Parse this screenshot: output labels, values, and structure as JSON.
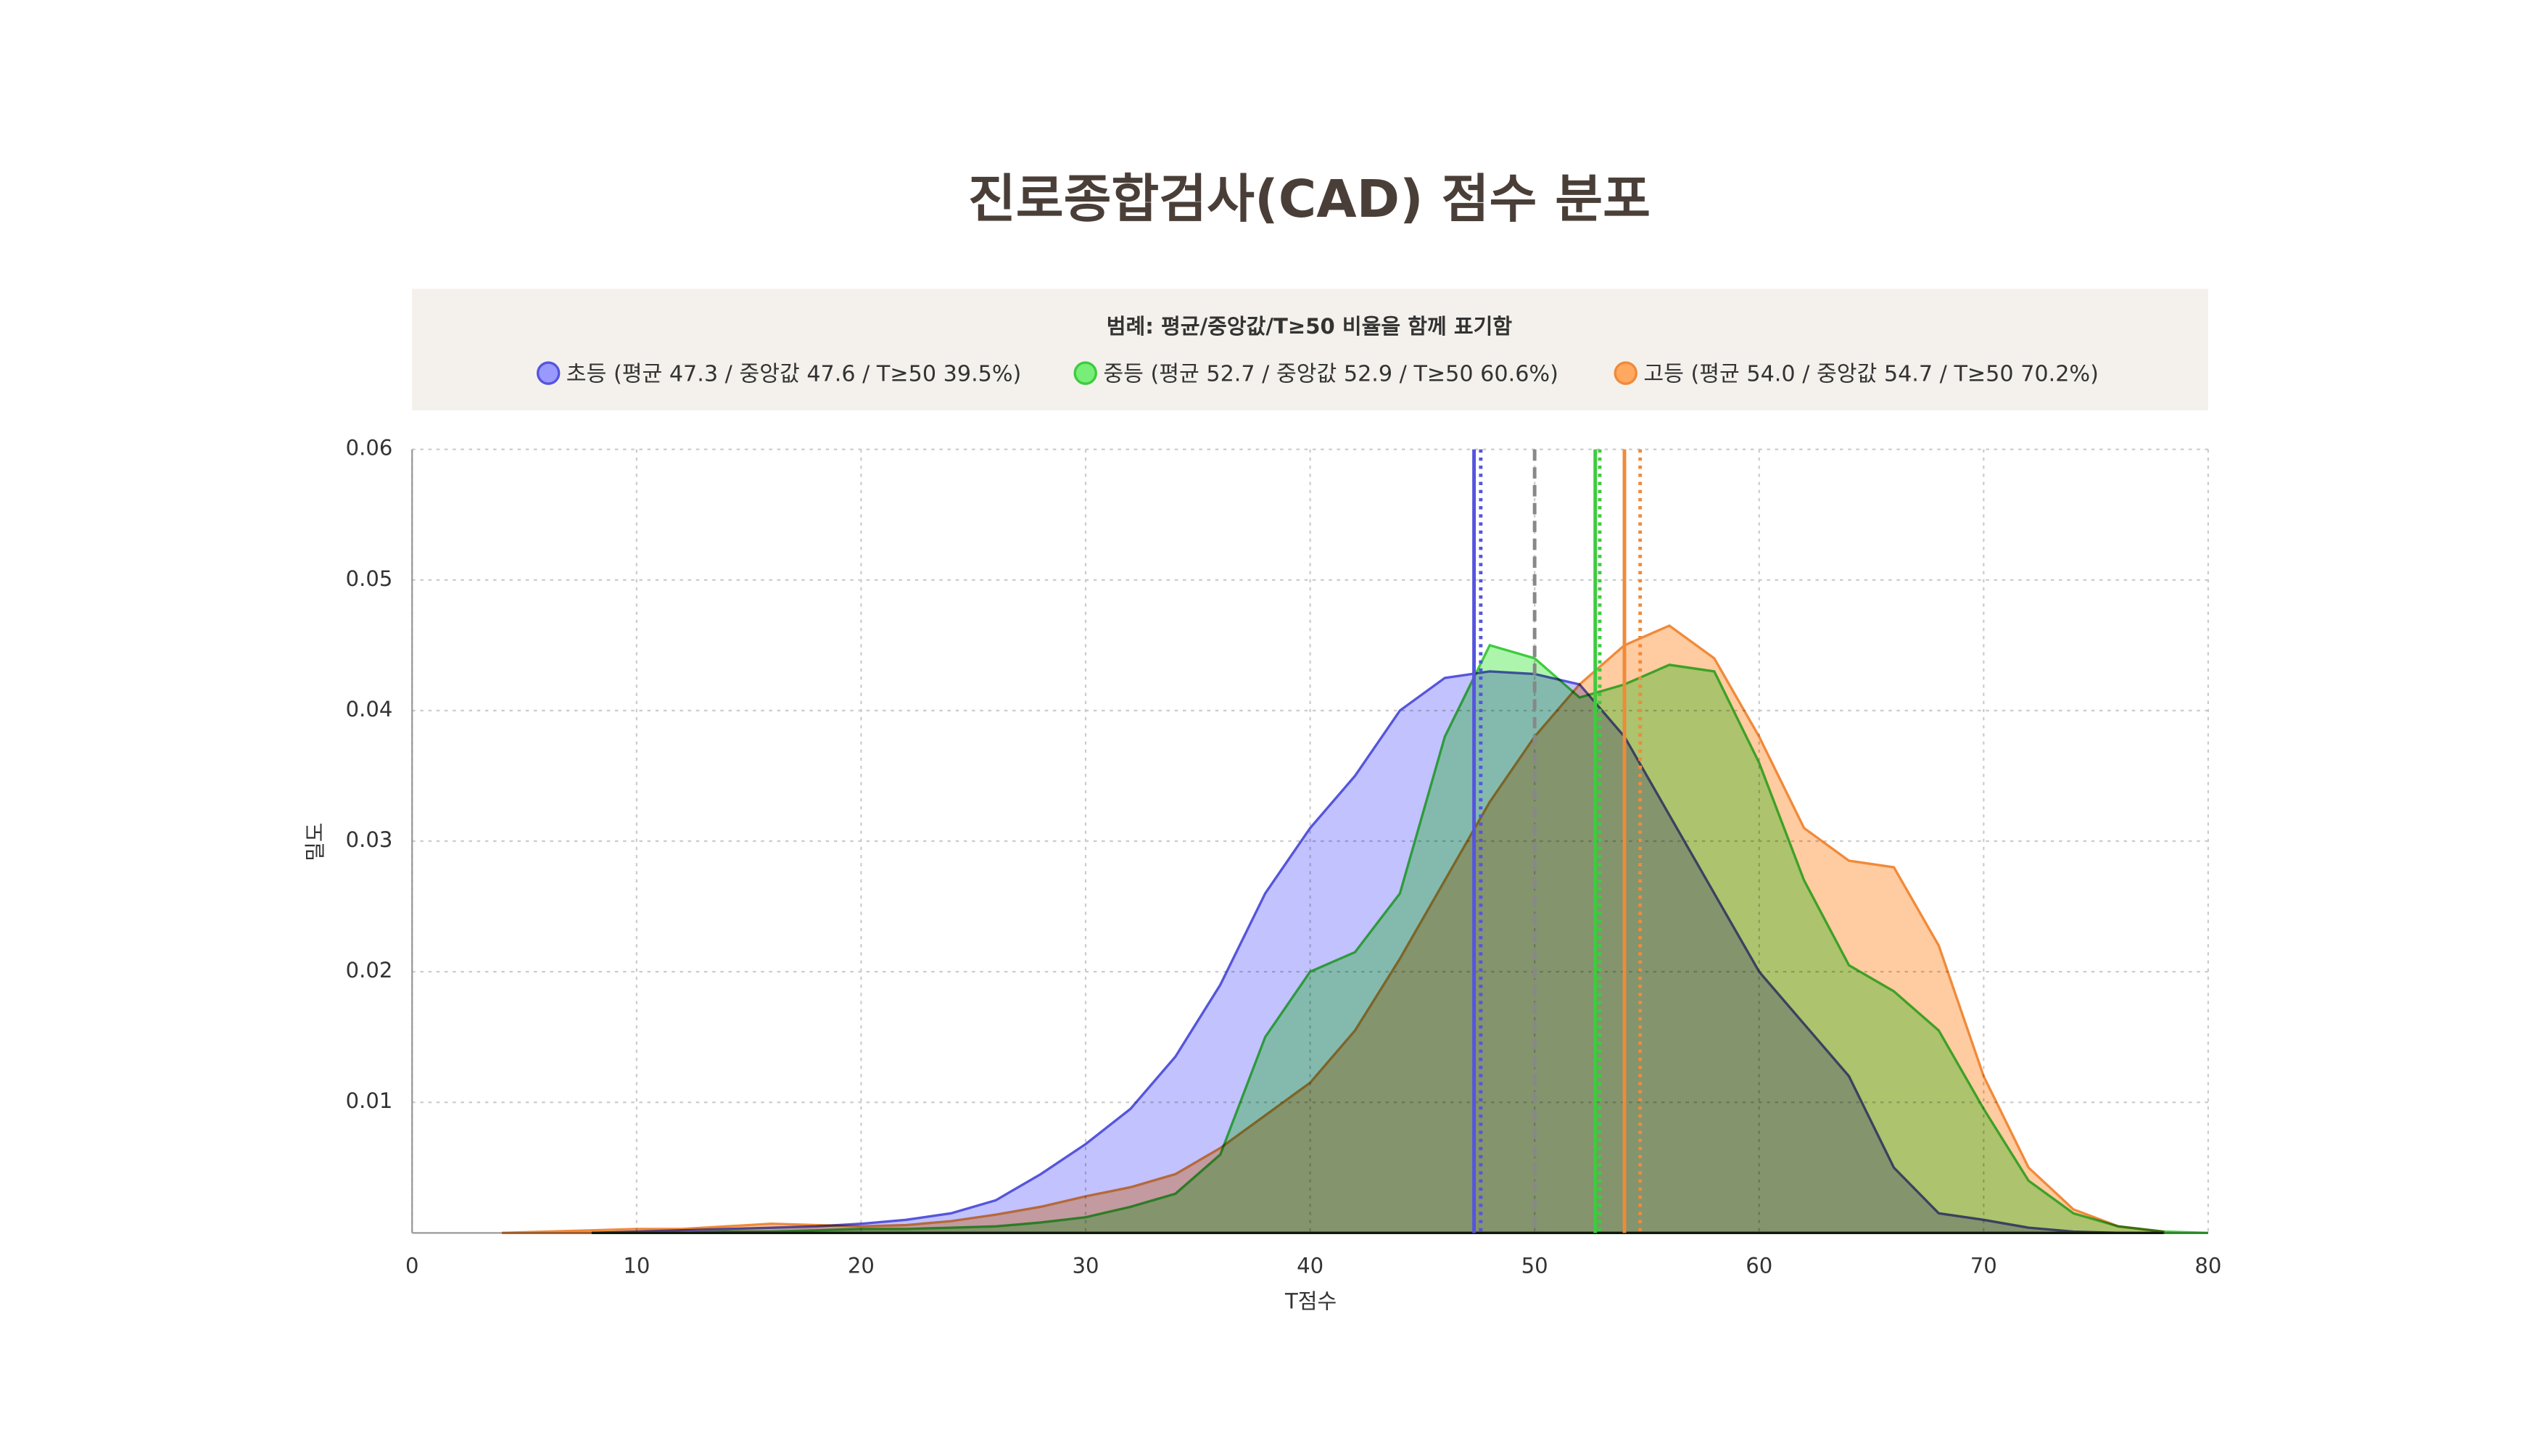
{
  "chart_data": {
    "type": "area",
    "title": "진로종합검사(CAD) 점수 분포",
    "legend_title": "범례: 평균/중앙값/T≥50 비율을 함께 표기함",
    "x_label": "T점수",
    "y_label": "밀도",
    "x": [
      4,
      6,
      8,
      10,
      12,
      14,
      16,
      18,
      20,
      22,
      24,
      26,
      28,
      30,
      32,
      34,
      36,
      38,
      40,
      42,
      44,
      46,
      48,
      50,
      52,
      54,
      56,
      58,
      60,
      62,
      64,
      66,
      68,
      70,
      72,
      74,
      76,
      78,
      80
    ],
    "series": [
      {
        "name": "초등 (평균 47.3 / 중앙값 47.6 / T≥50 39.5%)",
        "color": "#5555dd",
        "fill": "#9999ff",
        "mean": 47.3,
        "median": 47.6,
        "values": [
          null,
          null,
          0,
          0.0001,
          0.0002,
          0.0003,
          0.0004,
          0.0005,
          0.0007,
          0.001,
          0.0015,
          0.0025,
          0.0045,
          0.0068,
          0.0095,
          0.0135,
          0.019,
          0.026,
          0.031,
          0.035,
          0.04,
          0.0425,
          0.043,
          0.0428,
          0.042,
          0.038,
          0.032,
          0.026,
          0.02,
          0.016,
          0.012,
          0.005,
          0.0015,
          0.001,
          0.0004,
          0.0001,
          0,
          0,
          null
        ]
      },
      {
        "name": "중등 (평균 52.7 / 중앙값 52.9 / T≥50 60.6%)",
        "color": "#3ecb3e",
        "fill": "#77ee77",
        "mean": 52.7,
        "median": 52.9,
        "values": [
          null,
          null,
          0,
          0,
          0,
          0.0001,
          0.0001,
          0.0002,
          0.0003,
          0.0003,
          0.0004,
          0.0005,
          0.0008,
          0.0012,
          0.002,
          0.003,
          0.006,
          0.015,
          0.02,
          0.0215,
          0.026,
          0.038,
          0.045,
          0.044,
          0.041,
          0.042,
          0.0435,
          0.043,
          0.036,
          0.027,
          0.0205,
          0.0185,
          0.0155,
          0.0095,
          0.004,
          0.0015,
          0.0005,
          0.0001,
          0
        ]
      },
      {
        "name": "고등 (평균 54.0 / 중앙값 54.7 / T≥50 70.2%)",
        "color": "#f08a3a",
        "fill": "#ffa860",
        "mean": 54.0,
        "median": 54.7,
        "values": [
          0,
          0.0001,
          0.0002,
          0.0003,
          0.0003,
          0.0005,
          0.0007,
          0.0006,
          0.0005,
          0.0006,
          0.0009,
          0.0014,
          0.002,
          0.0028,
          0.0035,
          0.0045,
          0.0065,
          0.009,
          0.0115,
          0.0155,
          0.021,
          0.027,
          0.033,
          0.038,
          0.042,
          0.045,
          0.0465,
          0.044,
          0.038,
          0.031,
          0.0285,
          0.028,
          0.022,
          0.012,
          0.005,
          0.0018,
          0.0005,
          0.0001,
          null
        ]
      }
    ],
    "reference_x": 50,
    "reference_color": "#888888",
    "xlim": [
      0,
      80
    ],
    "xticks": [
      0,
      10,
      20,
      30,
      40,
      50,
      60,
      70,
      80
    ],
    "ylim": [
      0,
      0.06
    ],
    "yticks": [
      0.01,
      0.02,
      0.03,
      0.04,
      0.05,
      0.06
    ],
    "grid": true
  }
}
